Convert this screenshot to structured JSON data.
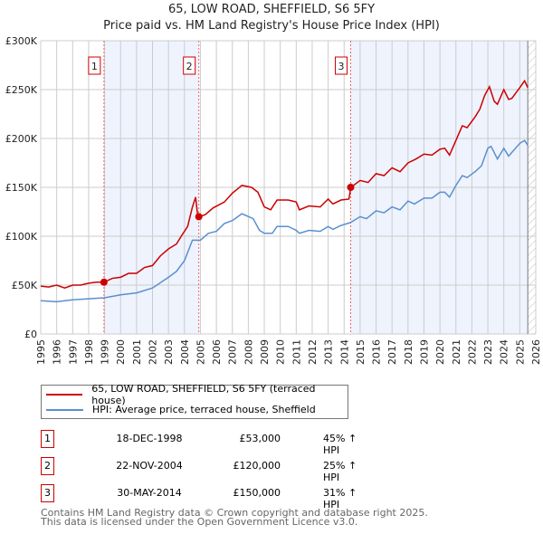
{
  "title": "65, LOW ROAD, SHEFFIELD, S6 5FY",
  "subtitle": "Price paid vs. HM Land Registry's House Price Index (HPI)",
  "chart_data": {
    "type": "line",
    "ylim": [
      0,
      300000
    ],
    "xlim": [
      1995,
      2026
    ],
    "yticks": [
      {
        "v": 0,
        "label": "£0"
      },
      {
        "v": 50000,
        "label": "£50K"
      },
      {
        "v": 100000,
        "label": "£100K"
      },
      {
        "v": 150000,
        "label": "£150K"
      },
      {
        "v": 200000,
        "label": "£200K"
      },
      {
        "v": 250000,
        "label": "£250K"
      },
      {
        "v": 300000,
        "label": "£300K"
      }
    ],
    "xticks": [
      "1995",
      "1996",
      "1997",
      "1998",
      "1999",
      "2000",
      "2001",
      "2002",
      "2003",
      "2004",
      "2005",
      "2006",
      "2007",
      "2008",
      "2009",
      "2010",
      "2011",
      "2012",
      "2013",
      "2014",
      "2015",
      "2016",
      "2017",
      "2018",
      "2019",
      "2020",
      "2021",
      "2022",
      "2023",
      "2024",
      "2025",
      "2026"
    ],
    "data_end": 2025.5,
    "series": [
      {
        "name": "65, LOW ROAD, SHEFFIELD, S6 5FY (terraced house)",
        "color": "#cc0000",
        "points": [
          [
            1995,
            49
          ],
          [
            1995.5,
            48
          ],
          [
            1996,
            50
          ],
          [
            1996.5,
            47
          ],
          [
            1997,
            50
          ],
          [
            1997.5,
            50
          ],
          [
            1998,
            52
          ],
          [
            1998.5,
            53
          ],
          [
            1998.96,
            53
          ],
          [
            1999.5,
            57
          ],
          [
            2000,
            58
          ],
          [
            2000.5,
            62
          ],
          [
            2001,
            62
          ],
          [
            2001.5,
            68
          ],
          [
            2002,
            70
          ],
          [
            2002.5,
            80
          ],
          [
            2003,
            87
          ],
          [
            2003.5,
            92
          ],
          [
            2003.8,
            100
          ],
          [
            2004.2,
            110
          ],
          [
            2004.5,
            130
          ],
          [
            2004.7,
            140
          ],
          [
            2004.85,
            118
          ],
          [
            2004.9,
            120
          ],
          [
            2005.3,
            122
          ],
          [
            2005.8,
            129
          ],
          [
            2006.5,
            135
          ],
          [
            2007,
            144
          ],
          [
            2007.6,
            152
          ],
          [
            2008.2,
            150
          ],
          [
            2008.6,
            145
          ],
          [
            2009,
            130
          ],
          [
            2009.4,
            127
          ],
          [
            2009.8,
            137
          ],
          [
            2010.5,
            137
          ],
          [
            2011,
            135
          ],
          [
            2011.2,
            127
          ],
          [
            2011.8,
            131
          ],
          [
            2012.5,
            130
          ],
          [
            2013,
            138
          ],
          [
            2013.3,
            133
          ],
          [
            2013.8,
            137
          ],
          [
            2014.3,
            138
          ],
          [
            2014.42,
            150
          ],
          [
            2015,
            157
          ],
          [
            2015.5,
            155
          ],
          [
            2016,
            164
          ],
          [
            2016.5,
            162
          ],
          [
            2017,
            170
          ],
          [
            2017.5,
            166
          ],
          [
            2018,
            175
          ],
          [
            2018.5,
            179
          ],
          [
            2019,
            184
          ],
          [
            2019.5,
            183
          ],
          [
            2020,
            189
          ],
          [
            2020.3,
            190
          ],
          [
            2020.6,
            183
          ],
          [
            2021,
            198
          ],
          [
            2021.4,
            213
          ],
          [
            2021.7,
            211
          ],
          [
            2022.2,
            222
          ],
          [
            2022.5,
            230
          ],
          [
            2022.8,
            244
          ],
          [
            2023.1,
            253
          ],
          [
            2023.4,
            238
          ],
          [
            2023.6,
            235
          ],
          [
            2024,
            250
          ],
          [
            2024.3,
            240
          ],
          [
            2024.5,
            241
          ],
          [
            2025,
            252
          ],
          [
            2025.3,
            259
          ],
          [
            2025.5,
            252
          ]
        ]
      },
      {
        "name": "HPI: Average price, terraced house, Sheffield",
        "color": "#5b8fd0",
        "points": [
          [
            1995,
            34
          ],
          [
            1996,
            33
          ],
          [
            1997,
            35
          ],
          [
            1998,
            36
          ],
          [
            1999,
            37
          ],
          [
            2000,
            40
          ],
          [
            2001,
            42
          ],
          [
            2002,
            47
          ],
          [
            2003,
            58
          ],
          [
            2003.5,
            64
          ],
          [
            2004,
            75
          ],
          [
            2004.5,
            96
          ],
          [
            2005,
            96
          ],
          [
            2005.5,
            103
          ],
          [
            2006,
            105
          ],
          [
            2006.5,
            113
          ],
          [
            2007,
            116
          ],
          [
            2007.6,
            123
          ],
          [
            2008.3,
            118
          ],
          [
            2008.7,
            106
          ],
          [
            2009,
            103
          ],
          [
            2009.5,
            103
          ],
          [
            2009.8,
            110
          ],
          [
            2010.5,
            110
          ],
          [
            2011,
            106
          ],
          [
            2011.2,
            103
          ],
          [
            2011.8,
            106
          ],
          [
            2012.5,
            105
          ],
          [
            2013,
            110
          ],
          [
            2013.3,
            107
          ],
          [
            2013.8,
            111
          ],
          [
            2014.4,
            114
          ],
          [
            2015,
            120
          ],
          [
            2015.4,
            118
          ],
          [
            2016,
            126
          ],
          [
            2016.5,
            124
          ],
          [
            2017,
            130
          ],
          [
            2017.5,
            127
          ],
          [
            2018,
            136
          ],
          [
            2018.4,
            133
          ],
          [
            2019,
            139
          ],
          [
            2019.5,
            139
          ],
          [
            2020,
            145
          ],
          [
            2020.3,
            145
          ],
          [
            2020.6,
            140
          ],
          [
            2021,
            152
          ],
          [
            2021.4,
            162
          ],
          [
            2021.7,
            160
          ],
          [
            2022.2,
            166
          ],
          [
            2022.6,
            172
          ],
          [
            2023,
            190
          ],
          [
            2023.2,
            192
          ],
          [
            2023.6,
            179
          ],
          [
            2024,
            190
          ],
          [
            2024.3,
            182
          ],
          [
            2025,
            195
          ],
          [
            2025.3,
            198
          ],
          [
            2025.5,
            193
          ]
        ]
      }
    ],
    "sales": [
      {
        "label": "1",
        "x": 1998.96,
        "price": 53000,
        "date": "18-DEC-1998",
        "price_text": "£53,000",
        "hpi_text": "45% ↑ HPI"
      },
      {
        "label": "2",
        "x": 2004.9,
        "price": 120000,
        "date": "22-NOV-2004",
        "price_text": "£120,000",
        "hpi_text": "25% ↑ HPI"
      },
      {
        "label": "3",
        "x": 2014.41,
        "price": 150000,
        "date": "30-MAY-2014",
        "price_text": "£150,000",
        "hpi_text": "31% ↑ HPI"
      }
    ]
  },
  "legend": {
    "red": "65, LOW ROAD, SHEFFIELD, S6 5FY (terraced house)",
    "blue": "HPI: Average price, terraced house, Sheffield"
  },
  "footer": {
    "line1": "Contains HM Land Registry data © Crown copyright and database right 2025.",
    "line2": "This data is licensed under the Open Government Licence v3.0."
  }
}
